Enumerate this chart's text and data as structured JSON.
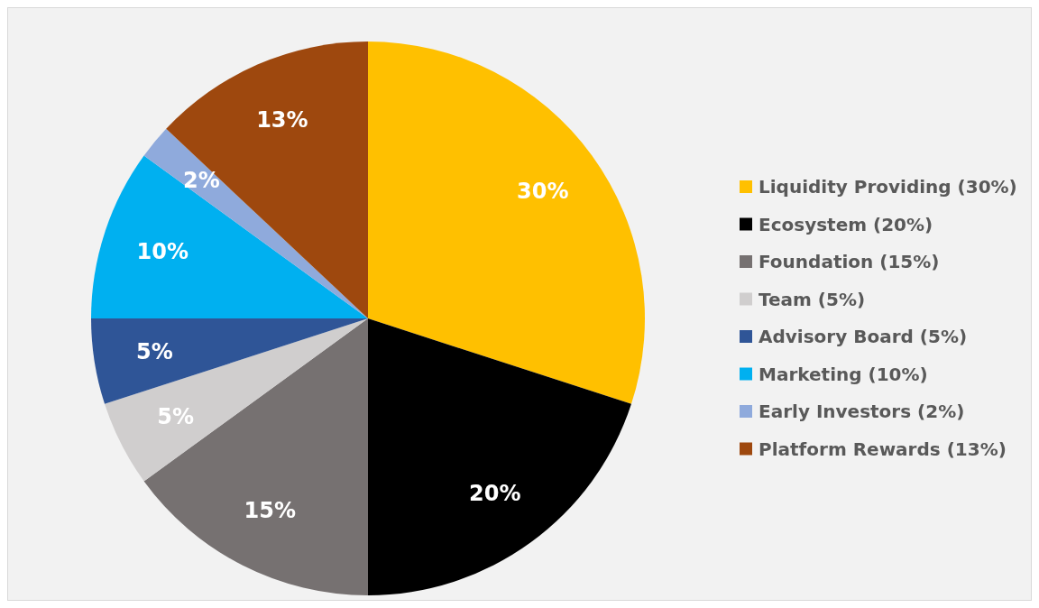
{
  "chart_data": {
    "type": "pie",
    "categories": [
      "Liquidity Providing (30%)",
      "Ecosystem (20%)",
      "Foundation (15%)",
      "Team (5%)",
      "Advisory Board (5%)",
      "Marketing (10%)",
      "Early Investors (2%)",
      "Platform Rewards (13%)"
    ],
    "values": [
      30,
      20,
      15,
      5,
      5,
      10,
      2,
      13
    ],
    "colors": [
      "#ffc000",
      "#000000",
      "#767171",
      "#d0cece",
      "#2f5597",
      "#00b0f0",
      "#8faadc",
      "#9e480e"
    ],
    "value_labels": [
      "30%",
      "20%",
      "15%",
      "5%",
      "5%",
      "10%",
      "2%",
      "13%"
    ],
    "legend": "right"
  }
}
